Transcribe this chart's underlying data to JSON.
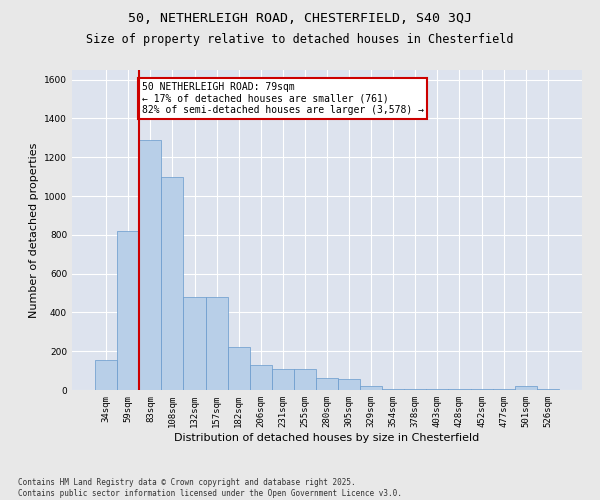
{
  "title1": "50, NETHERLEIGH ROAD, CHESTERFIELD, S40 3QJ",
  "title2": "Size of property relative to detached houses in Chesterfield",
  "xlabel": "Distribution of detached houses by size in Chesterfield",
  "ylabel": "Number of detached properties",
  "bar_color": "#b8cfe8",
  "bar_edge_color": "#6699cc",
  "background_color": "#dde3ee",
  "grid_color": "#ffffff",
  "annotation_box_color": "#cc0000",
  "vline_color": "#cc0000",
  "vline_x": 1.5,
  "annotation_text": "50 NETHERLEIGH ROAD: 79sqm\n← 17% of detached houses are smaller (761)\n82% of semi-detached houses are larger (3,578) →",
  "categories": [
    "34sqm",
    "59sqm",
    "83sqm",
    "108sqm",
    "132sqm",
    "157sqm",
    "182sqm",
    "206sqm",
    "231sqm",
    "255sqm",
    "280sqm",
    "305sqm",
    "329sqm",
    "354sqm",
    "378sqm",
    "403sqm",
    "428sqm",
    "452sqm",
    "477sqm",
    "501sqm",
    "526sqm"
  ],
  "values": [
    155,
    820,
    1290,
    1100,
    480,
    480,
    220,
    130,
    110,
    110,
    60,
    55,
    20,
    5,
    5,
    5,
    5,
    5,
    5,
    20,
    5
  ],
  "ylim": [
    0,
    1650
  ],
  "yticks": [
    0,
    200,
    400,
    600,
    800,
    1000,
    1200,
    1400,
    1600
  ],
  "footnote": "Contains HM Land Registry data © Crown copyright and database right 2025.\nContains public sector information licensed under the Open Government Licence v3.0.",
  "title_fontsize": 9.5,
  "subtitle_fontsize": 8.5,
  "axis_label_fontsize": 8,
  "tick_fontsize": 6.5,
  "annotation_fontsize": 7
}
